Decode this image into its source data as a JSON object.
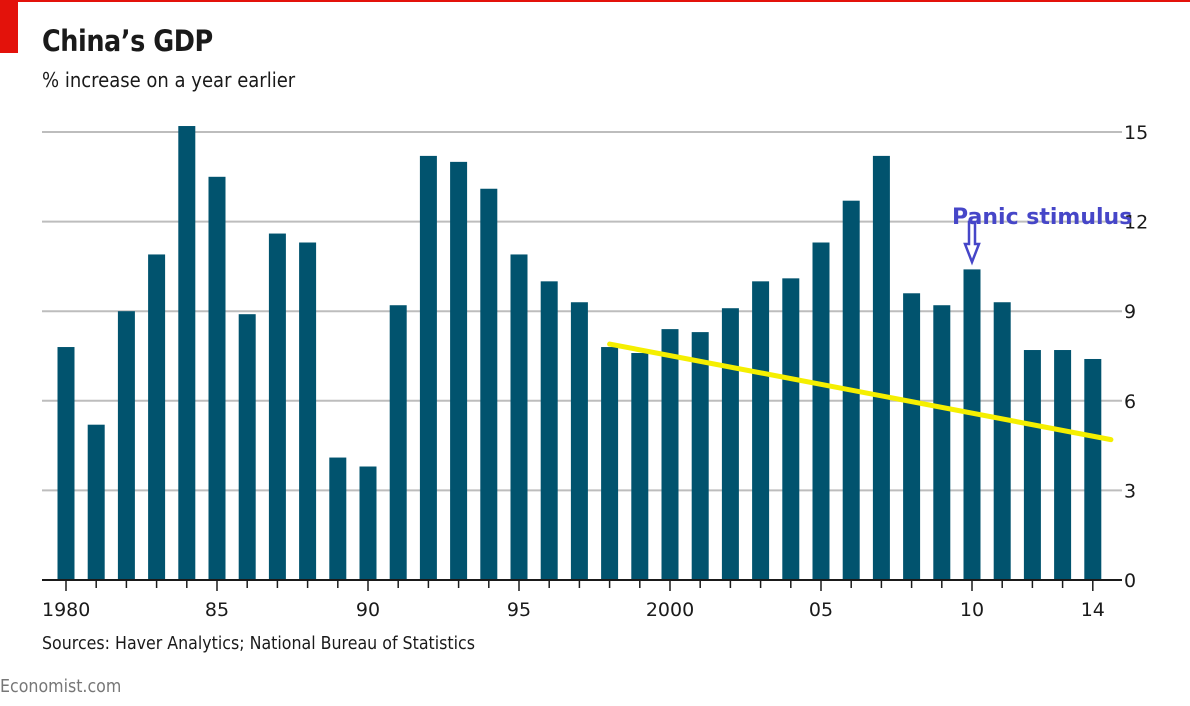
{
  "header": {
    "title": "China’s GDP",
    "subtitle": "% increase on a year earlier"
  },
  "footer": {
    "source": "Sources: Haver Analytics; National Bureau of Statistics",
    "brand": "Economist.com"
  },
  "colors": {
    "accent": "#e3120b",
    "bar": "#01536e",
    "grid": "#bdbdbd",
    "trend": "#f5ef00",
    "annotation": "#4646c8"
  },
  "chart_data": {
    "type": "bar",
    "title": "China’s GDP",
    "subtitle": "% increase on a year earlier",
    "xlabel": "",
    "ylabel": "% increase on a year earlier",
    "ylim": [
      0,
      15
    ],
    "grid": true,
    "y_axis_side": "right",
    "y_ticks": [
      0,
      3,
      6,
      9,
      12,
      15
    ],
    "x": [
      1980,
      1981,
      1982,
      1983,
      1984,
      1985,
      1986,
      1987,
      1988,
      1989,
      1990,
      1991,
      1992,
      1993,
      1994,
      1995,
      1996,
      1997,
      1998,
      1999,
      2000,
      2001,
      2002,
      2003,
      2004,
      2005,
      2006,
      2007,
      2008,
      2009,
      2010,
      2011,
      2012,
      2013,
      2014
    ],
    "x_tick_labels": [
      {
        "year": 1980,
        "label": "1980"
      },
      {
        "year": 1985,
        "label": "85"
      },
      {
        "year": 1990,
        "label": "90"
      },
      {
        "year": 1995,
        "label": "95"
      },
      {
        "year": 2000,
        "label": "2000"
      },
      {
        "year": 2005,
        "label": "05"
      },
      {
        "year": 2010,
        "label": "10"
      },
      {
        "year": 2014,
        "label": "14"
      }
    ],
    "series": [
      {
        "name": "GDP growth",
        "values": [
          7.8,
          5.2,
          9.0,
          10.9,
          15.2,
          13.5,
          8.9,
          11.6,
          11.3,
          4.1,
          3.8,
          9.2,
          14.2,
          14.0,
          13.1,
          10.9,
          10.0,
          9.3,
          7.8,
          7.6,
          8.4,
          8.3,
          9.1,
          10.0,
          10.1,
          11.3,
          12.7,
          14.2,
          9.6,
          9.2,
          10.4,
          9.3,
          7.7,
          7.7,
          7.4
        ]
      }
    ],
    "trend_line": {
      "name": "Downward trend (hand-drawn)",
      "start": {
        "x": 1998,
        "y": 7.9
      },
      "end": {
        "x": 2014.6,
        "y": 4.7
      }
    },
    "annotations": [
      {
        "text": "Panic stimulus",
        "target_year": 2010,
        "arrow": "down"
      }
    ]
  }
}
